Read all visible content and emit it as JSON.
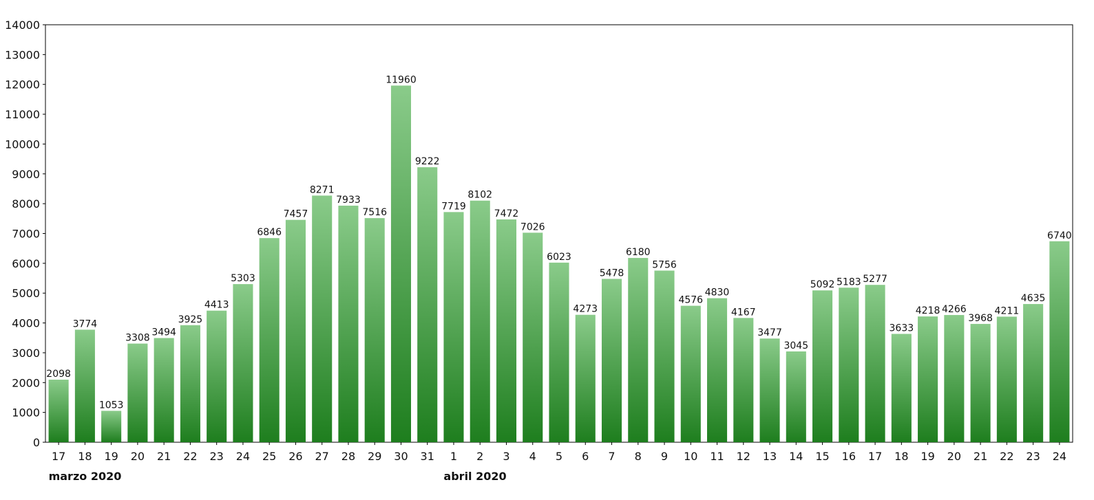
{
  "chart_data": {
    "type": "bar",
    "categories": [
      "17",
      "18",
      "19",
      "20",
      "21",
      "22",
      "23",
      "24",
      "25",
      "26",
      "27",
      "28",
      "29",
      "30",
      "31",
      "1",
      "2",
      "3",
      "4",
      "5",
      "6",
      "7",
      "8",
      "9",
      "10",
      "11",
      "12",
      "13",
      "14",
      "15",
      "16",
      "17",
      "18",
      "19",
      "20",
      "21",
      "22",
      "23",
      "24"
    ],
    "values": [
      2098,
      3774,
      1053,
      3308,
      3494,
      3925,
      4413,
      5303,
      6846,
      7457,
      8271,
      7933,
      7516,
      11960,
      9222,
      7719,
      8102,
      7472,
      7026,
      6023,
      4273,
      5478,
      6180,
      5756,
      4576,
      4830,
      4167,
      3477,
      3045,
      5092,
      5183,
      5277,
      3633,
      4218,
      4266,
      3968,
      4211,
      4635,
      6740
    ],
    "yticks": [
      "0",
      "1000",
      "2000",
      "3000",
      "4000",
      "5000",
      "6000",
      "7000",
      "8000",
      "9000",
      "10000",
      "11000",
      "12000",
      "13000",
      "14000"
    ],
    "ylim": [
      0,
      14000
    ],
    "month_labels": [
      {
        "text": "marzo 2020",
        "start_index": 0
      },
      {
        "text": "abril 2020",
        "start_index": 15
      }
    ],
    "data_labels": true,
    "grid": false,
    "colors": {
      "bar_top": "#8acb8a",
      "bar_bottom": "#1e7e1e",
      "axis": "#000000"
    }
  }
}
